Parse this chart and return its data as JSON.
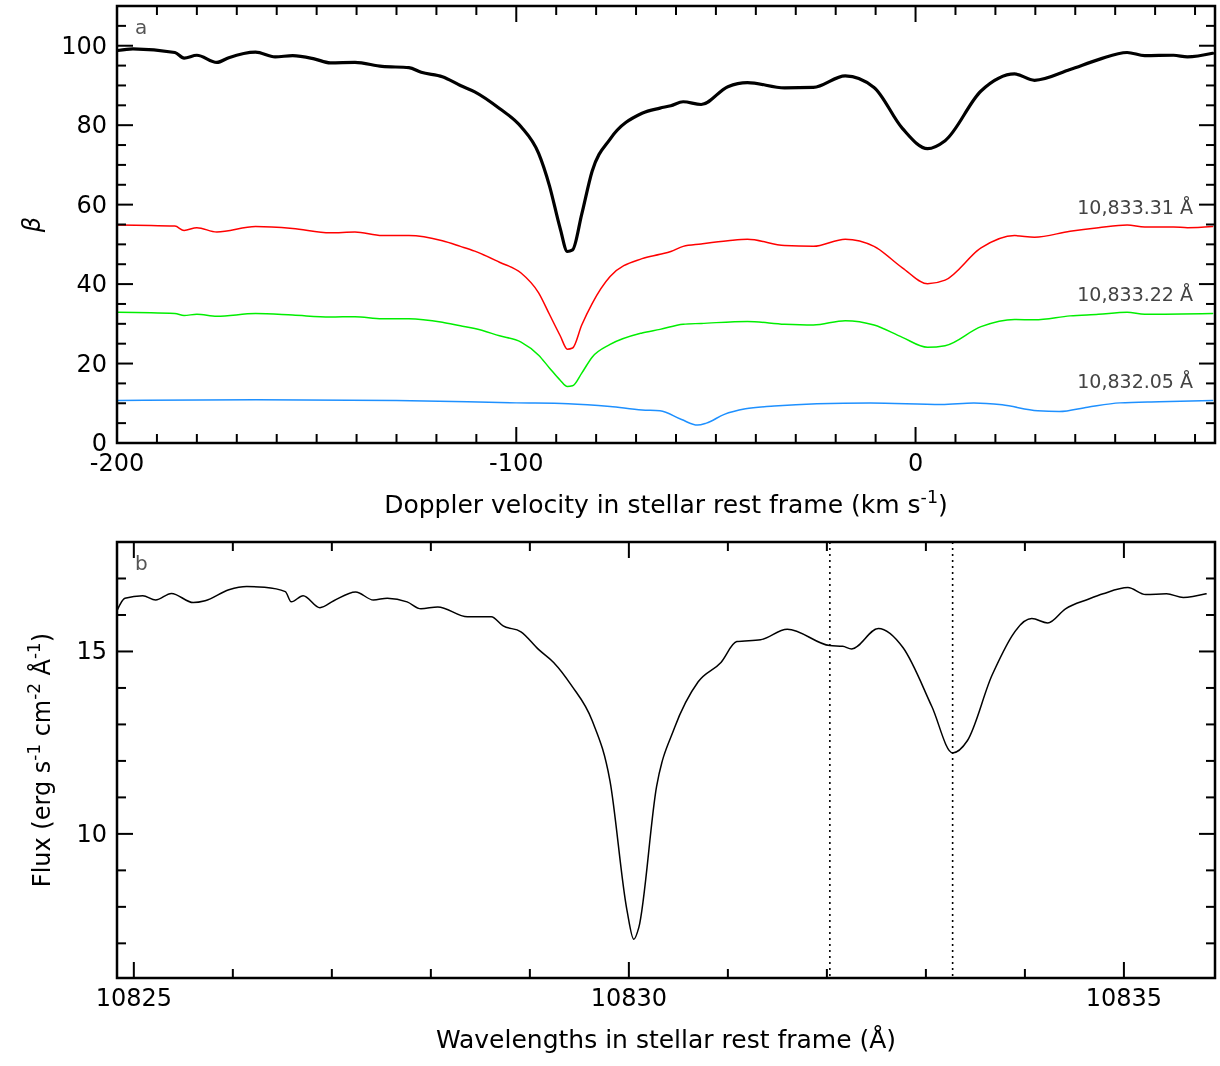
{
  "chart_data": [
    {
      "type": "line",
      "xlabel": "Doppler velocity in stellar rest frame (km s$^{-1}$)",
      "ylabel": "β",
      "annotations": [
        "a"
      ],
      "xlim": [
        -200,
        75
      ],
      "ylim": [
        0,
        110
      ],
      "xticks": [
        -200,
        {
          "value": -190,
          "label": null
        },
        {
          "value": -180,
          "label": null
        },
        {
          "value": -170,
          "label": null
        },
        {
          "value": -160,
          "label": null
        },
        {
          "value": -150,
          "label": null
        },
        {
          "value": -140,
          "label": null
        },
        {
          "value": -130,
          "label": null
        },
        {
          "value": -120,
          "label": null
        },
        {
          "value": -110,
          "label": null
        },
        -100,
        {
          "value": -90,
          "label": null
        },
        {
          "value": -80,
          "label": null
        },
        {
          "value": -70,
          "label": null
        },
        {
          "value": -60,
          "label": null
        },
        {
          "value": -50,
          "label": null
        },
        {
          "value": -40,
          "label": null
        },
        {
          "value": -30,
          "label": null
        },
        {
          "value": -20,
          "label": null
        },
        {
          "value": -10,
          "label": null
        },
        0,
        {
          "value": 10,
          "label": null
        },
        {
          "value": 20,
          "label": null
        },
        {
          "value": 30,
          "label": null
        },
        {
          "value": 40,
          "label": null
        },
        {
          "value": 50,
          "label": null
        },
        {
          "value": 60,
          "label": null
        },
        {
          "value": 70,
          "label": null
        }
      ],
      "yticks": [
        0,
        {
          "value": 5,
          "label": null
        },
        {
          "value": 10,
          "label": null
        },
        {
          "value": 15,
          "label": null
        },
        20,
        {
          "value": 25,
          "label": null
        },
        {
          "value": 30,
          "label": null
        },
        {
          "value": 35,
          "label": null
        },
        40,
        {
          "value": 45,
          "label": null
        },
        {
          "value": 50,
          "label": null
        },
        {
          "value": 55,
          "label": null
        },
        60,
        {
          "value": 65,
          "label": null
        },
        {
          "value": 70,
          "label": null
        },
        {
          "value": 75,
          "label": null
        },
        80,
        {
          "value": 85,
          "label": null
        },
        {
          "value": 90,
          "label": null
        },
        {
          "value": 95,
          "label": null
        },
        100,
        {
          "value": 105,
          "label": null
        }
      ],
      "grid": false,
      "marker": "none",
      "line_style": "solid",
      "series": [
        {
          "color": "#000000",
          "x": [
            -199.8,
            -196,
            -185.5,
            -183.2,
            -180,
            -175,
            -172,
            -165.3,
            -160.4,
            -156,
            -150.6,
            -146.6,
            -140.4,
            -133.6,
            -126.9,
            -123.8,
            -118.5,
            -114,
            -110.4,
            -104.2,
            -98.8,
            -94.4,
            -91.7,
            -89,
            -87.2,
            -85.9,
            -83.6,
            -81,
            -76.5,
            -68.5,
            -64,
            -61.3,
            -58.2,
            -53.7,
            -47,
            -42.1,
            -32.8,
            -25.6,
            -17.6,
            -10.4,
            -3.3,
            3,
            7.4,
            16.4,
            24.8,
            29.8,
            38.7,
            45.8,
            53,
            57.4,
            64.6,
            68.1,
            74.4
          ],
          "values": [
            98.8,
            99.2,
            98.3,
            96.9,
            97.6,
            95.8,
            97,
            98.4,
            97.2,
            97.5,
            96.7,
            95.7,
            95.8,
            94.8,
            94.5,
            93.3,
            92.2,
            90,
            88.4,
            84.2,
            79.6,
            72.9,
            64.8,
            54,
            48.2,
            48.6,
            57.6,
            68.4,
            76.5,
            83,
            84.3,
            84.9,
            85.9,
            85.2,
            89.7,
            90.7,
            89.4,
            89.5,
            92.4,
            89.5,
            79.2,
            74.1,
            76.1,
            88.6,
            92.9,
            91.3,
            94,
            96.5,
            98.3,
            97.5,
            97.6,
            97.2,
            98.1
          ]
        },
        {
          "name": "10,833.31 Å",
          "color": "#ff0000",
          "x": [
            -199.8,
            -185.5,
            -183.2,
            -180,
            -175,
            -165.3,
            -156,
            -146.6,
            -140.4,
            -133.6,
            -126.9,
            -118.5,
            -114,
            -110.4,
            -104.2,
            -98.8,
            -94.4,
            -91.7,
            -89,
            -87.2,
            -85.9,
            -83.6,
            -81,
            -76.5,
            -68.5,
            -64,
            -61.3,
            -58.2,
            -53.7,
            -47,
            -42.1,
            -32.8,
            -25.6,
            -17.6,
            -10.4,
            -3.3,
            3,
            7.4,
            16.4,
            24.8,
            29.8,
            38.7,
            45.8,
            53,
            57.4,
            64.6,
            68.1,
            74.4
          ],
          "values": [
            54.9,
            54.6,
            53.5,
            54.2,
            53.1,
            54.5,
            54,
            52.9,
            53.1,
            52.2,
            52.2,
            50.9,
            49.5,
            48.3,
            45.5,
            42.8,
            37.8,
            32.4,
            27,
            23.6,
            23.9,
            29.7,
            35.1,
            41.9,
            46.4,
            47.5,
            48.2,
            49.5,
            50.1,
            50.9,
            51.3,
            49.7,
            49.5,
            51.3,
            49.5,
            44.1,
            40.1,
            41,
            49.1,
            52.2,
            51.8,
            53.3,
            54.2,
            54.9,
            54.4,
            54.4,
            54.2,
            54.5
          ]
        },
        {
          "name": "10,833.22 Å",
          "color": "#00ee00",
          "x": [
            -199.8,
            -185.5,
            -183.2,
            -180,
            -175,
            -165.3,
            -156,
            -146.6,
            -140.4,
            -133.6,
            -126.9,
            -118.5,
            -114,
            -110.4,
            -104.2,
            -98.8,
            -94.4,
            -91.7,
            -89,
            -87.2,
            -85.9,
            -83.6,
            -81,
            -76.5,
            -68.5,
            -64,
            -58.2,
            -53.7,
            -42.1,
            -32.8,
            -25.6,
            -17.6,
            -10.4,
            -3.3,
            3,
            7.4,
            16.4,
            24.8,
            29.8,
            38.7,
            45.8,
            53,
            57.4,
            74.4
          ],
          "values": [
            32.9,
            32.6,
            32.1,
            32.4,
            31.9,
            32.6,
            32.2,
            31.7,
            31.8,
            31.3,
            31.3,
            30.4,
            29.5,
            28.8,
            27,
            25.4,
            22.1,
            18.9,
            15.8,
            14.2,
            14.4,
            17.6,
            21.6,
            24.8,
            27.7,
            28.6,
            29.9,
            30.1,
            30.6,
            29.9,
            29.7,
            30.8,
            29.7,
            26.6,
            24.1,
            24.5,
            29.3,
            31.1,
            31,
            32,
            32.4,
            32.9,
            32.4,
            32.6
          ]
        },
        {
          "name": "10,832.05 Å",
          "color": "#1e90ff",
          "x": [
            -199.8,
            -165,
            -130,
            -100,
            -87,
            -76.5,
            -68.5,
            -64,
            -58.6,
            -54.6,
            -52.4,
            -47.9,
            -42.6,
            -35.4,
            -24.7,
            -11.3,
            6.5,
            14.6,
            21.7,
            30.6,
            36,
            43.1,
            51.2,
            61,
            74.4
          ],
          "values": [
            10.7,
            10.9,
            10.7,
            10.1,
            9.9,
            9.2,
            8.3,
            8.1,
            5.9,
            4.5,
            5,
            7.2,
            8.6,
            9.3,
            9.9,
            10.1,
            9.7,
            10.1,
            9.6,
            8.1,
            7.9,
            9,
            10.1,
            10.4,
            10.7
          ]
        }
      ]
    },
    {
      "type": "line",
      "xlabel": "Wavelengths in stellar rest frame (Å)",
      "ylabel": "Flux (erg s$^{-1}$ cm$^{-2}$ Å$^{-1}$)",
      "annotations": [
        "b"
      ],
      "xlim": [
        10824.83,
        10835.92
      ],
      "ylim": [
        6.05,
        18
      ],
      "xticks": [
        10825,
        {
          "value": 10826,
          "label": null
        },
        {
          "value": 10827,
          "label": null
        },
        {
          "value": 10828,
          "label": null
        },
        {
          "value": 10829,
          "label": null
        },
        10830,
        {
          "value": 10831,
          "label": null
        },
        {
          "value": 10832,
          "label": null
        },
        {
          "value": 10833,
          "label": null
        },
        {
          "value": 10834,
          "label": null
        },
        10835
      ],
      "yticks": [
        {
          "value": 7,
          "label": null
        },
        {
          "value": 8,
          "label": null
        },
        {
          "value": 9,
          "label": null
        },
        10,
        {
          "value": 11,
          "label": null
        },
        {
          "value": 12,
          "label": null
        },
        {
          "value": 13,
          "label": null
        },
        {
          "value": 14,
          "label": null
        },
        15,
        {
          "value": 16,
          "label": null
        },
        {
          "value": 17,
          "label": null
        }
      ],
      "grid": false,
      "marker": "none",
      "line_style": "solid",
      "ref_lines": [
        {
          "axis": "x",
          "value": 10832.03,
          "line_style": "dotted",
          "color": "#000000"
        },
        {
          "axis": "x",
          "value": 10833.27,
          "line_style": "dotted",
          "color": "#000000"
        }
      ],
      "series": [
        {
          "color": "#000000",
          "x": [
            10824.83,
            10824.91,
            10825.09,
            10825.22,
            10825.38,
            10825.6,
            10825.72,
            10825.96,
            10826.14,
            10826.32,
            10826.53,
            10826.59,
            10826.71,
            10826.88,
            10827.02,
            10827.24,
            10827.42,
            10827.56,
            10827.76,
            10827.9,
            10828.07,
            10828.37,
            10828.61,
            10828.73,
            10828.91,
            10829.09,
            10829.24,
            10829.42,
            10829.63,
            10829.81,
            10829.98,
            10830.05,
            10830.1,
            10830.28,
            10830.46,
            10830.7,
            10830.93,
            10831.09,
            10831.33,
            10831.6,
            10832.03,
            10832.16,
            10832.25,
            10832.52,
            10832.77,
            10833.06,
            10833.27,
            10833.42,
            10833.67,
            10834.07,
            10834.23,
            10834.41,
            10834.64,
            10834.79,
            10835.04,
            10835.22,
            10835.43,
            10835.6,
            10835.83
          ],
          "values": [
            16.12,
            16.46,
            16.53,
            16.41,
            16.59,
            16.34,
            16.39,
            16.69,
            16.78,
            16.76,
            16.64,
            16.36,
            16.53,
            16.2,
            16.39,
            16.63,
            16.41,
            16.46,
            16.36,
            16.17,
            16.22,
            15.95,
            15.95,
            15.7,
            15.54,
            15.05,
            14.7,
            14.07,
            13.1,
            11.44,
            7.92,
            7.11,
            7.43,
            11.3,
            12.9,
            14.17,
            14.7,
            15.27,
            15.32,
            15.61,
            15.16,
            15.14,
            15.07,
            15.63,
            15.1,
            13.49,
            12.22,
            12.56,
            14.36,
            15.9,
            15.78,
            16.17,
            16.43,
            16.58,
            16.75,
            16.56,
            16.58,
            16.48,
            16.58
          ]
        }
      ]
    }
  ]
}
